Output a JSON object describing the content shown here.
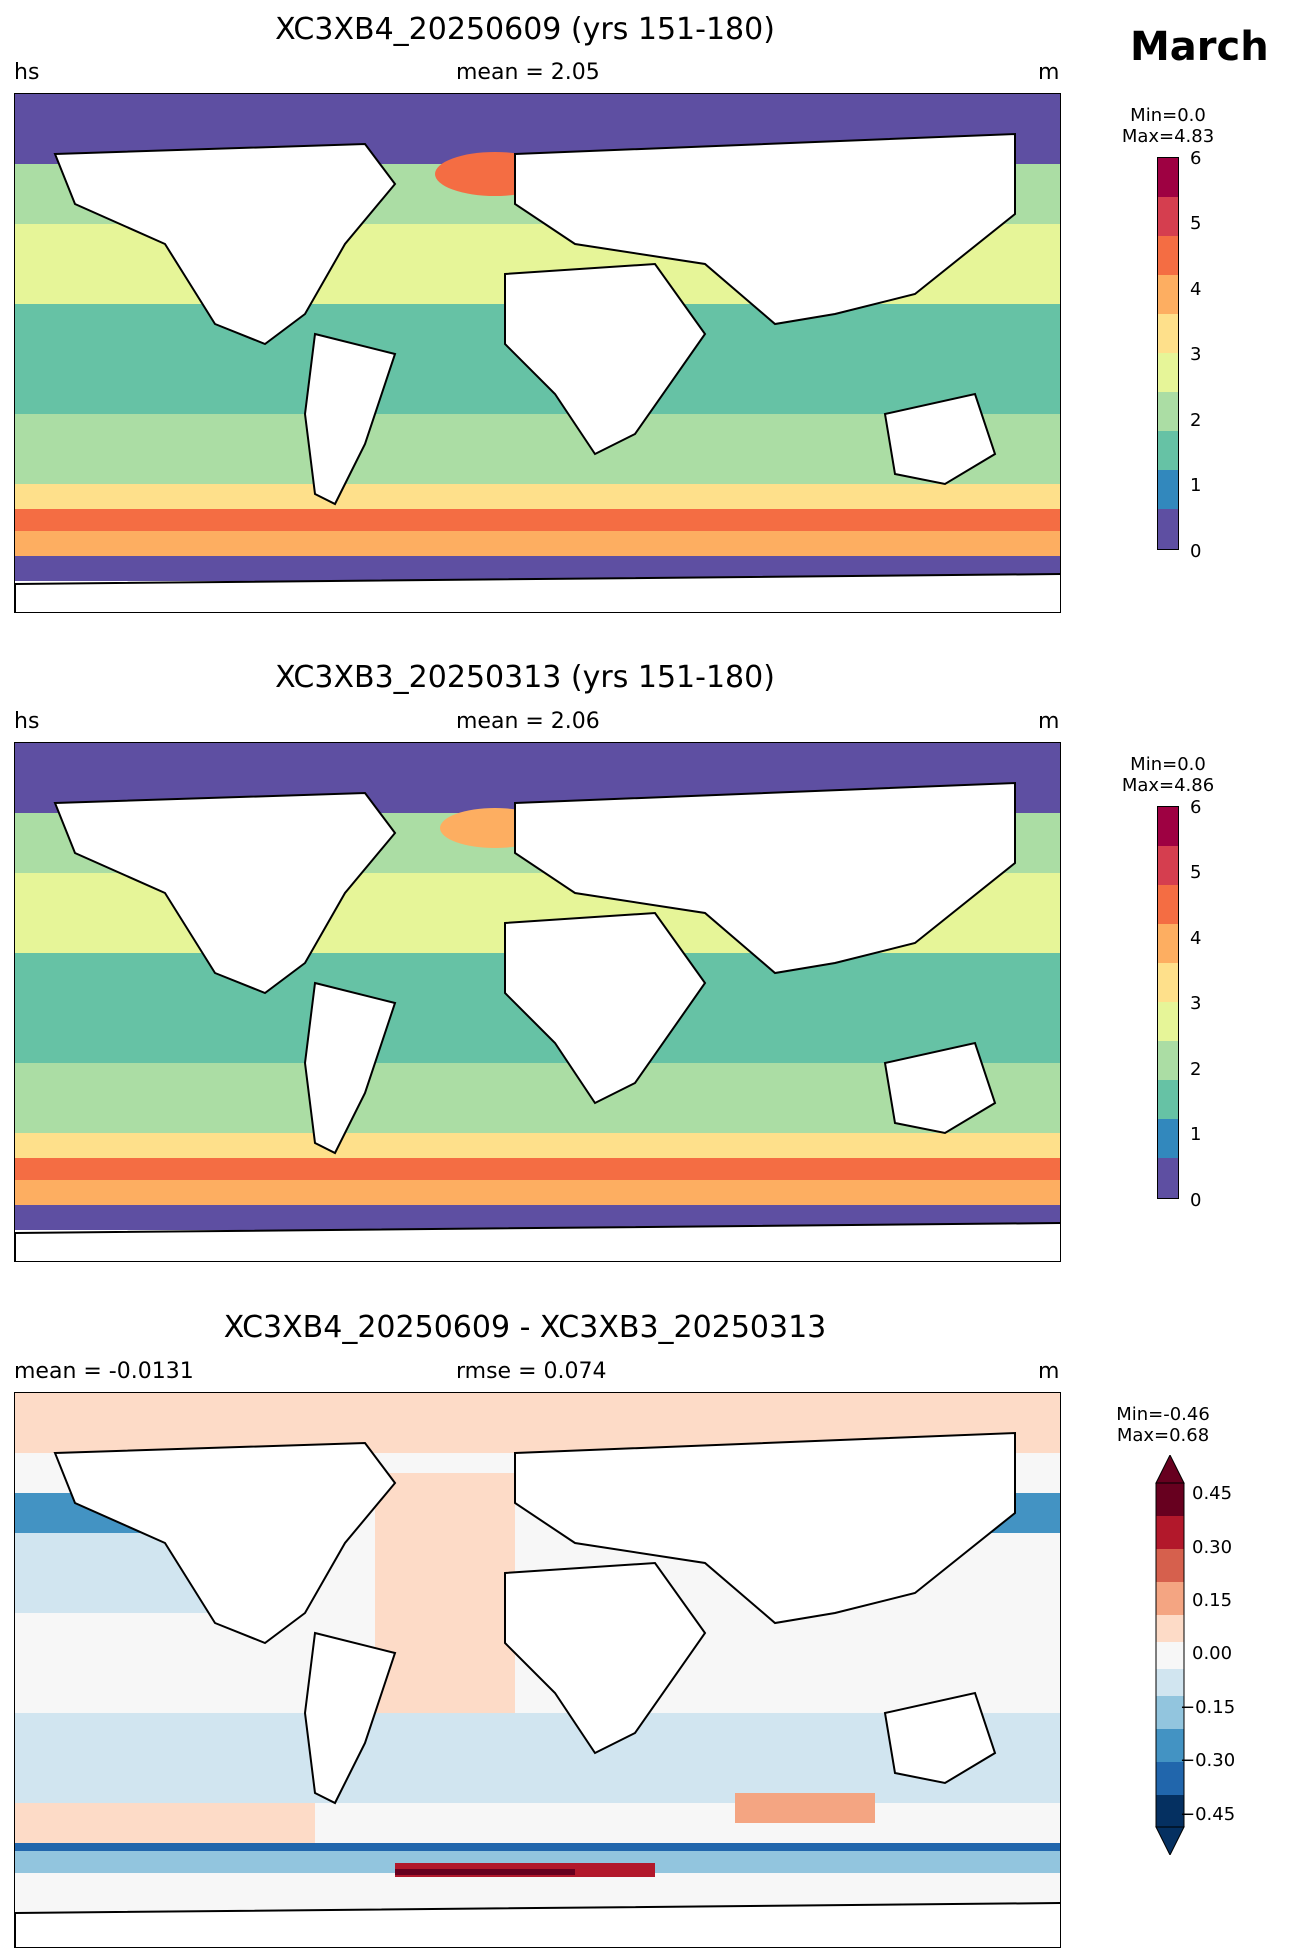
{
  "month": "March",
  "panels": [
    {
      "title": "XC3XB4_20250609 (yrs 151-180)",
      "left_label": "hs",
      "center_label": "mean = 2.05",
      "right_label": "m",
      "minmax": [
        "Min=0.0",
        "Max=4.83"
      ],
      "colorbar_ticks": [
        "0",
        "1",
        "2",
        "3",
        "4",
        "5",
        "6"
      ],
      "colorbar_colors": [
        "#5e4fa2",
        "#3288bd",
        "#66c2a5",
        "#abdda4",
        "#e6f598",
        "#fee08b",
        "#fdae61",
        "#f46d43",
        "#d53e4f",
        "#9e0142"
      ]
    },
    {
      "title": "XC3XB3_20250313 (yrs 151-180)",
      "left_label": "hs",
      "center_label": "mean = 2.06",
      "right_label": "m",
      "minmax": [
        "Min=0.0",
        "Max=4.86"
      ],
      "colorbar_ticks": [
        "0",
        "1",
        "2",
        "3",
        "4",
        "5",
        "6"
      ],
      "colorbar_colors": [
        "#5e4fa2",
        "#3288bd",
        "#66c2a5",
        "#abdda4",
        "#e6f598",
        "#fee08b",
        "#fdae61",
        "#f46d43",
        "#d53e4f",
        "#9e0142"
      ]
    },
    {
      "title": "XC3XB4_20250609 - XC3XB3_20250313",
      "left_label": "mean = -0.0131",
      "center_label": "rmse = 0.074",
      "right_label": "m",
      "minmax": [
        "Min=-0.46",
        "Max=0.68"
      ],
      "colorbar_ticks": [
        "−0.45",
        "−0.30",
        "−0.15",
        "0.00",
        "0.15",
        "0.30",
        "0.45"
      ],
      "colorbar_colors": [
        "#053061",
        "#2166ac",
        "#4393c3",
        "#92c5de",
        "#d1e5f0",
        "#f7f7f7",
        "#fddbc7",
        "#f4a582",
        "#d6604d",
        "#b2182b",
        "#67001f"
      ]
    }
  ]
}
